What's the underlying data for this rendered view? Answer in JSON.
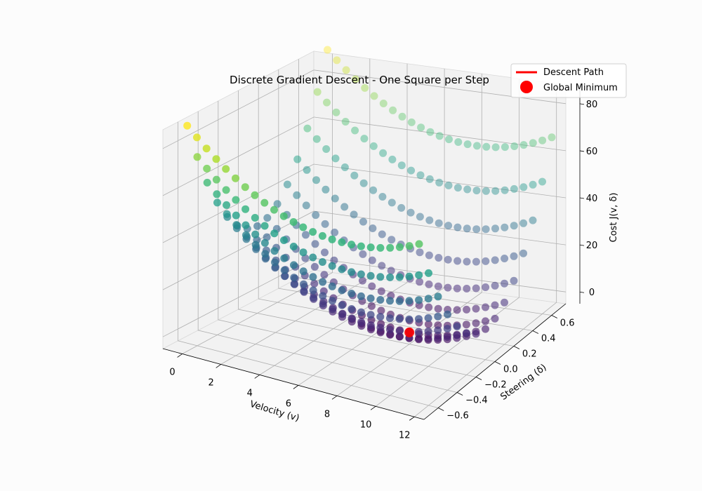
{
  "chart_data": {
    "type": "scatter3d",
    "title": "Discrete Gradient Descent - One Square per Step",
    "xlabel": "Velocity (v)",
    "ylabel": "Steering (δ)",
    "zlabel": "Cost J(v, δ)",
    "x_ticks": [
      "0",
      "2",
      "4",
      "6",
      "8",
      "10",
      "12"
    ],
    "y_ticks": [
      "−0.6",
      "−0.4",
      "−0.2",
      "0.0",
      "0.2",
      "0.4",
      "0.6"
    ],
    "z_ticks": [
      "0",
      "20",
      "40",
      "60",
      "80"
    ],
    "xlim": [
      -1,
      12.5
    ],
    "ylim": [
      -0.75,
      0.75
    ],
    "zlim": [
      -5,
      88
    ],
    "grid": true,
    "colormap": "viridis",
    "surface": {
      "cost_function": "J(v, δ) = 0.5·(v − 8)² + 120·δ²",
      "v_range": [
        0,
        12
      ],
      "v_step": 0.5,
      "delta_values": [
        -0.7,
        -0.6,
        -0.5,
        -0.4,
        -0.3,
        -0.2,
        -0.1,
        0.0,
        0.1,
        0.2,
        0.3,
        0.4,
        0.5,
        0.6,
        0.7
      ]
    },
    "descent_path": {
      "name": "Descent Path",
      "color": "#ff0000",
      "points": [
        [
          8.0,
          0.0,
          0.0
        ]
      ]
    },
    "global_minimum": {
      "name": "Global Minimum",
      "color": "#ff0000",
      "point": [
        8.0,
        0.0,
        0.0
      ]
    },
    "legend_position": "top-right",
    "legend": [
      "Descent Path",
      "Global Minimum"
    ]
  }
}
